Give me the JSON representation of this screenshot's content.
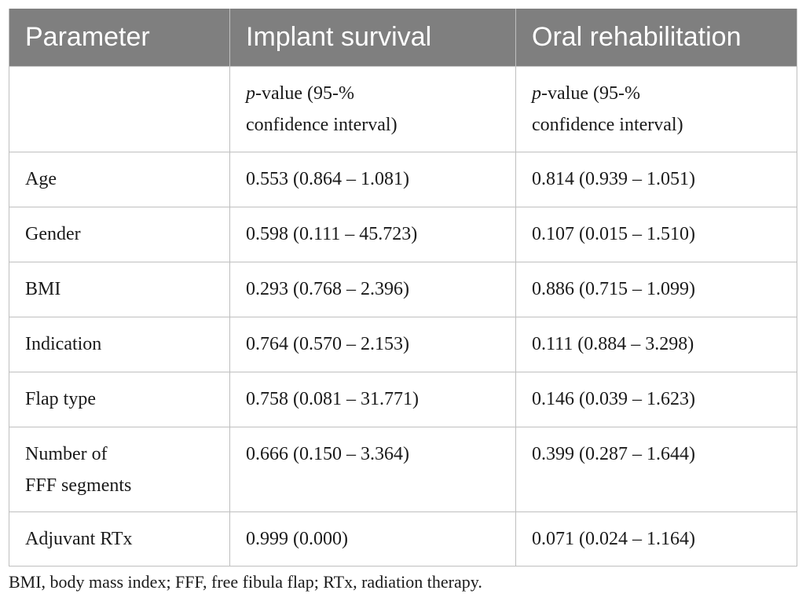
{
  "table": {
    "headers": [
      "Parameter",
      "Implant survival",
      "Oral rehabilitation"
    ],
    "subheader": {
      "col1": "",
      "col2_italic": "p",
      "col2_rest_line1": "-value (95-%",
      "col2_line2": "confidence interval)",
      "col3_italic": "p",
      "col3_rest_line1": "-value (95-%",
      "col3_line2": "confidence interval)"
    },
    "rows": [
      {
        "parameter": "Age",
        "implant": "0.553 (0.864 – 1.081)",
        "oral": "0.814 (0.939 – 1.051)"
      },
      {
        "parameter": "Gender",
        "implant": "0.598 (0.111 – 45.723)",
        "oral": "0.107 (0.015 – 1.510)"
      },
      {
        "parameter": "BMI",
        "implant": "0.293 (0.768 – 2.396)",
        "oral": "0.886 (0.715 – 1.099)"
      },
      {
        "parameter": "Indication",
        "implant": "0.764 (0.570 – 2.153)",
        "oral": "0.111 (0.884 – 3.298)"
      },
      {
        "parameter": "Flap type",
        "implant": "0.758 (0.081 – 31.771)",
        "oral": "0.146 (0.039 – 1.623)"
      },
      {
        "parameter_line1": "Number of",
        "parameter_line2": "FFF segments",
        "implant": "0.666 (0.150 – 3.364)",
        "oral": "0.399 (0.287 – 1.644)"
      },
      {
        "parameter": "Adjuvant RTx",
        "implant": "0.999 (0.000)",
        "oral": "0.071 (0.024 – 1.164)"
      }
    ],
    "header_bg_color": "#7f7f7f",
    "border_color": "#bfbfbf"
  },
  "footnote": "BMI, body mass index; FFF, free fibula flap; RTx, radiation therapy."
}
